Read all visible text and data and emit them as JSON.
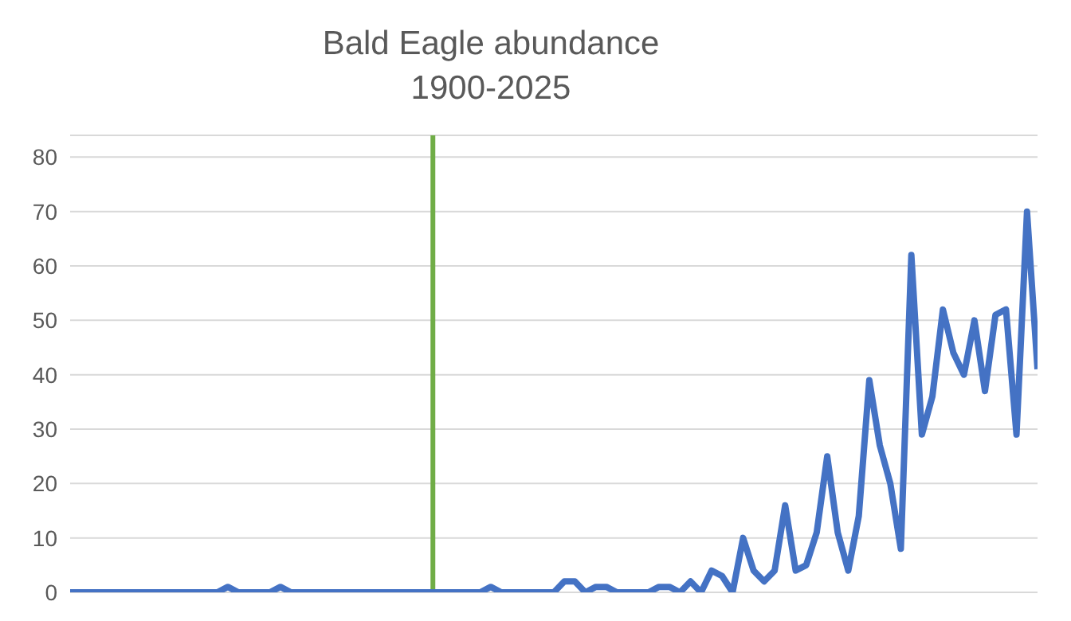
{
  "chart_data": {
    "type": "line",
    "title": "Bald Eagle abundance\n1900-2025",
    "categories": [
      null,
      null,
      null,
      null,
      null,
      null,
      null,
      null,
      null,
      null,
      null,
      null,
      null,
      null,
      null,
      null,
      null,
      null,
      null,
      null,
      null,
      null,
      null,
      null,
      null,
      null,
      null,
      null,
      null,
      null,
      null,
      null,
      null,
      null,
      null,
      null,
      null,
      null,
      null,
      null,
      null,
      null,
      null,
      null,
      null,
      null,
      null,
      null,
      null,
      null,
      null,
      null,
      null,
      null,
      null,
      null,
      null,
      null,
      null,
      null,
      null,
      null,
      null,
      null,
      null,
      null,
      null,
      null,
      null,
      null,
      null,
      null,
      null,
      null,
      null,
      null,
      null,
      null,
      null,
      null,
      null,
      null,
      null,
      null,
      null,
      null,
      null,
      null,
      null,
      null,
      null,
      null,
      null
    ],
    "series": [
      {
        "color": "#4472c4",
        "values": [
          0,
          0,
          0,
          0,
          0,
          0,
          0,
          0,
          0,
          0,
          0,
          0,
          0,
          0,
          0,
          1,
          0,
          0,
          0,
          0,
          1,
          0,
          0,
          0,
          0,
          0,
          0,
          0,
          0,
          0,
          0,
          0,
          0,
          0,
          0,
          0,
          0,
          0,
          0,
          0,
          1,
          0,
          0,
          0,
          0,
          0,
          0,
          2,
          2,
          0,
          1,
          1,
          0,
          0,
          0,
          0,
          1,
          1,
          0,
          2,
          0,
          4,
          3,
          0,
          10,
          4,
          2,
          4,
          16,
          4,
          5,
          11,
          25,
          11,
          4,
          14,
          39,
          27,
          20,
          8,
          62,
          29,
          36,
          52,
          44,
          40,
          50,
          37,
          51,
          52,
          29,
          70,
          41
        ]
      }
    ],
    "ylim": [
      0,
      84
    ],
    "yticks": [
      0,
      10,
      20,
      30,
      40,
      50,
      60,
      70,
      80
    ],
    "grid": "y",
    "marker": "none",
    "line_style": "solid",
    "legend": false
  }
}
